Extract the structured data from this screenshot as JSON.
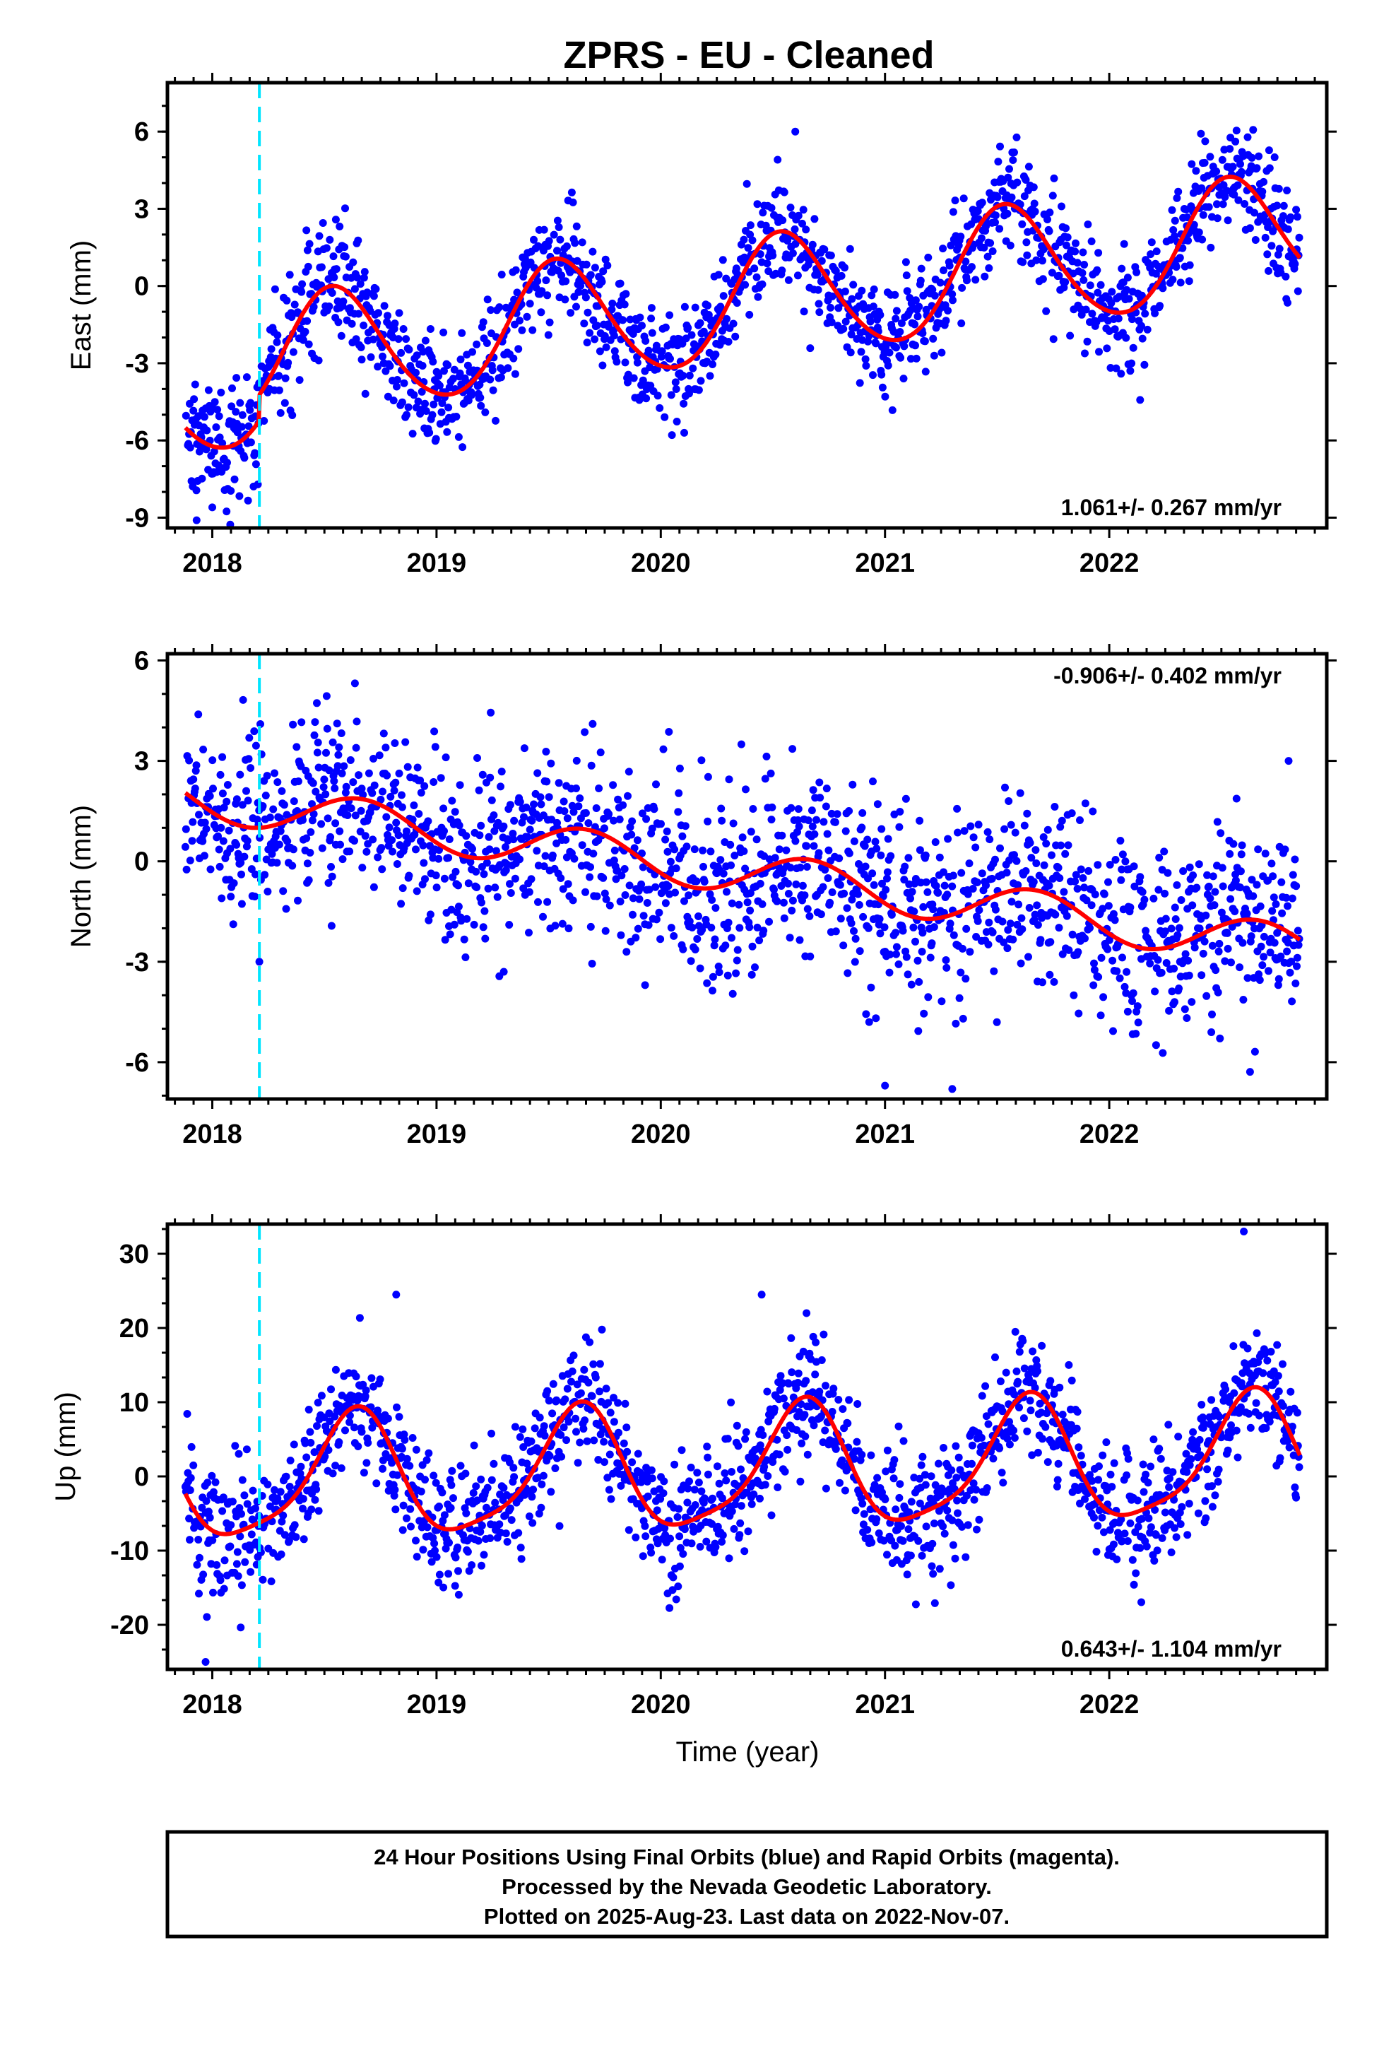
{
  "title": "ZPRS  - EU - Cleaned",
  "xlabel": "Time (year)",
  "footer": {
    "line1": "24 Hour Positions Using Final Orbits (blue) and Rapid Orbits (magenta).",
    "line2": "Processed by the Nevada Geodetic Laboratory.",
    "line3": "Plotted on 2025-Aug-23. Last data on 2022-Nov-07."
  },
  "colors": {
    "points": "#0000ff",
    "model": "#ff0000",
    "offset_line": "#00e5ff"
  },
  "chart_data": [
    {
      "type": "scatter",
      "component": "east",
      "ylabel": "East (mm)",
      "rate_text": "1.061+/- 0.267 mm/yr",
      "xlim": [
        2017.8,
        2022.97
      ],
      "ylim": [
        -9.4,
        7.9
      ],
      "xticks": [
        2018,
        2019,
        2020,
        2021,
        2022
      ],
      "yticks": [
        -9,
        -6,
        -3,
        0,
        3,
        6
      ],
      "offset_epoch": 2018.21,
      "model": {
        "t0": 2020.0,
        "intercept": -1.0,
        "rate": 1.061,
        "annual_cos": -2.3,
        "annual_sin": -0.6,
        "semiannual_cos": 0.2,
        "semiannual_sin": 0.0,
        "step_epoch": 2018.21,
        "step": 1.0
      },
      "scatter_sigma": 1.1,
      "outliers": [
        [
          2017.93,
          -9.1
        ],
        [
          2018.0,
          -8.6
        ],
        [
          2017.96,
          -5.5
        ],
        [
          2020.6,
          6.0
        ]
      ],
      "data_span": [
        2017.88,
        2022.85
      ]
    },
    {
      "type": "scatter",
      "component": "north",
      "ylabel": "North (mm)",
      "rate_text": "-0.906+/- 0.402 mm/yr",
      "xlim": [
        2017.8,
        2022.97
      ],
      "ylim": [
        -7.1,
        6.2
      ],
      "xticks": [
        2018,
        2019,
        2020,
        2021,
        2022
      ],
      "yticks": [
        -6,
        -3,
        0,
        3,
        6
      ],
      "offset_epoch": 2018.21,
      "model": {
        "t0": 2020.0,
        "intercept": 0.0,
        "rate": -0.906,
        "annual_cos": -0.35,
        "annual_sin": -0.55,
        "semiannual_cos": 0.0,
        "semiannual_sin": 0.0,
        "step_epoch": 2018.21,
        "step": 0.0
      },
      "scatter_sigma": 1.35,
      "outliers": [
        [
          2019.3,
          -3.3
        ],
        [
          2019.93,
          -3.7
        ],
        [
          2021.3,
          -6.8
        ],
        [
          2021.0,
          -6.7
        ],
        [
          2018.21,
          -3.0
        ],
        [
          2022.8,
          3.0
        ]
      ],
      "data_span": [
        2017.88,
        2022.85
      ]
    },
    {
      "type": "scatter",
      "component": "up",
      "ylabel": "Up (mm)",
      "rate_text": "0.643+/- 1.104 mm/yr",
      "xlim": [
        2017.8,
        2022.97
      ],
      "ylim": [
        -26,
        34
      ],
      "xticks": [
        2018,
        2019,
        2020,
        2021,
        2022
      ],
      "yticks": [
        -20,
        -10,
        0,
        10,
        20,
        30
      ],
      "offset_epoch": 2018.21,
      "model": {
        "t0": 2020.0,
        "intercept": 0.5,
        "rate": 0.643,
        "annual_cos": -5.5,
        "annual_sin": -6.0,
        "semiannual_cos": -1.0,
        "semiannual_sin": 1.5,
        "step_epoch": 2018.21,
        "step": 0.0
      },
      "scatter_sigma": 4.3,
      "outliers": [
        [
          2022.6,
          33.0
        ],
        [
          2018.82,
          24.5
        ],
        [
          2020.45,
          24.5
        ],
        [
          2017.97,
          -25.0
        ]
      ],
      "data_span": [
        2017.88,
        2022.85
      ]
    }
  ]
}
